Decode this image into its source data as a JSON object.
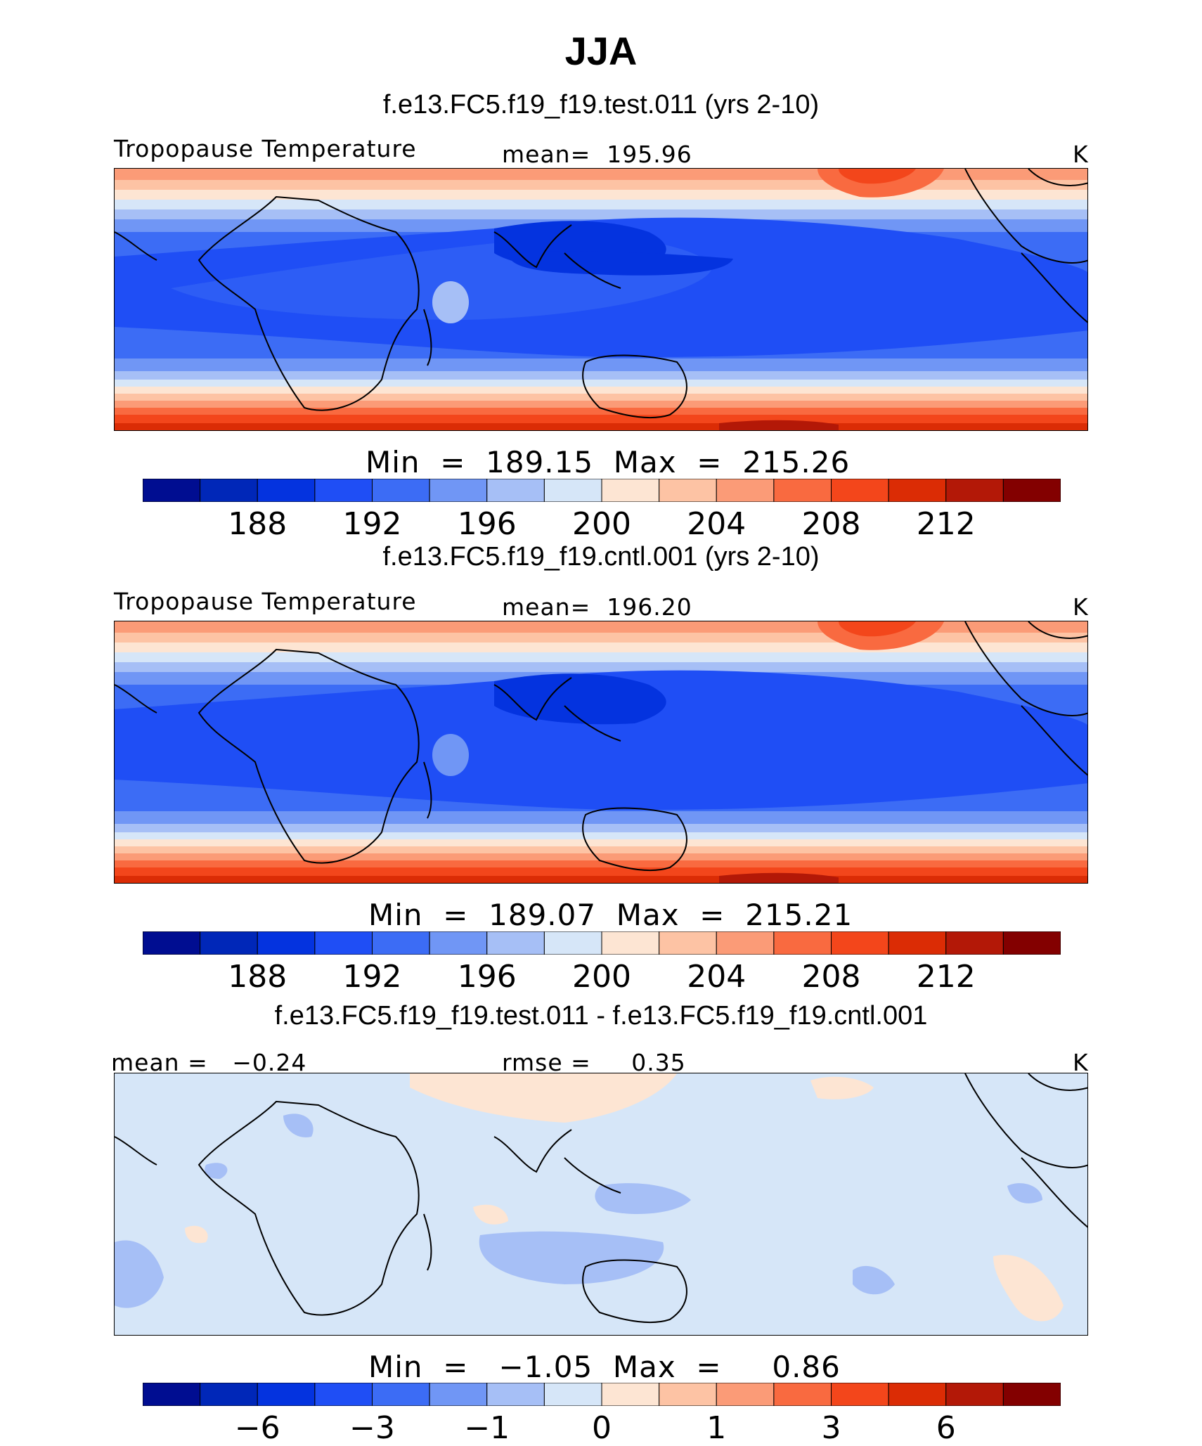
{
  "chart_data": [
    {
      "type": "heatmap",
      "title": "f.e13.FC5.f19_f19.test.011 (yrs 2-10)",
      "left_label": "Tropopause Temperature",
      "center_label": "mean=  195.96",
      "right_label": "K",
      "min_max": "Min  =  189.15  Max  =  215.26",
      "colorbar_levels": [
        186,
        188,
        190,
        192,
        194,
        196,
        198,
        200,
        202,
        204,
        206,
        208,
        210,
        212,
        214
      ],
      "colorbar_tick_labels": [
        "188",
        "192",
        "196",
        "200",
        "204",
        "208",
        "212"
      ],
      "colorbar_ticks": [
        188,
        192,
        196,
        200,
        204,
        208,
        212
      ]
    },
    {
      "type": "heatmap",
      "title": "f.e13.FC5.f19_f19.cntl.001 (yrs 2-10)",
      "left_label": "Tropopause Temperature",
      "center_label": "mean=  196.20",
      "right_label": "K",
      "min_max": "Min  =  189.07  Max  =  215.21",
      "colorbar_levels": [
        186,
        188,
        190,
        192,
        194,
        196,
        198,
        200,
        202,
        204,
        206,
        208,
        210,
        212,
        214
      ],
      "colorbar_tick_labels": [
        "188",
        "192",
        "196",
        "200",
        "204",
        "208",
        "212"
      ],
      "colorbar_ticks": [
        188,
        192,
        196,
        200,
        204,
        208,
        212
      ]
    },
    {
      "type": "heatmap",
      "title": "f.e13.FC5.f19_f19.test.011 - f.e13.FC5.f19_f19.cntl.001",
      "left_label": "mean =   −0.24",
      "center_label": "rmse =     0.35",
      "right_label": "K",
      "min_max": "Min  =   −1.05  Max  =     0.86",
      "colorbar_tick_labels": [
        "−6",
        "−3",
        "−1",
        "0",
        "1",
        "3",
        "6"
      ]
    }
  ],
  "page": {
    "title": "JJA"
  },
  "colors": {
    "palette": [
      "#000d91",
      "#0027b8",
      "#0433df",
      "#1f4ef5",
      "#3c6cf5",
      "#7096f5",
      "#a6bff6",
      "#d6e6f8",
      "#fde5d3",
      "#fdc3a4",
      "#fb9b77",
      "#f96a40",
      "#f3461b",
      "#db2c05",
      "#b31807",
      "#830000"
    ],
    "land_outline": "#000000"
  }
}
